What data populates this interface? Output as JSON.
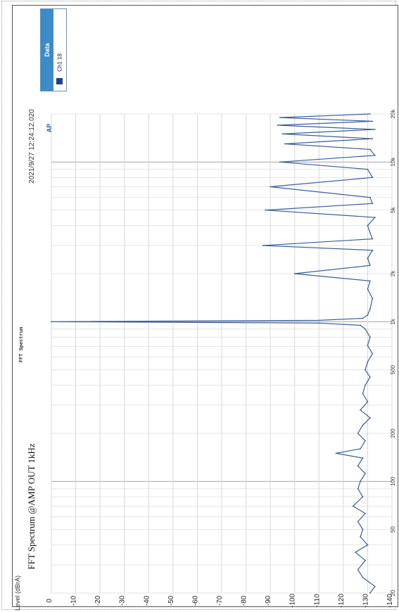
{
  "chart_data": {
    "type": "line",
    "title": "FFT Spectrum @AMP OUT 1kHz",
    "subtitle": "FFT Spectrum",
    "timestamp": "2021/9/27 12:24:12.020",
    "logo": "AP",
    "xlabel": "",
    "ylabel": "Level (dBrA)",
    "x_scale": "log",
    "xlim": [
      20,
      20000
    ],
    "ylim": [
      -140,
      0
    ],
    "y_ticks": [
      0,
      -10,
      -20,
      -30,
      -40,
      -50,
      -60,
      -70,
      -80,
      -90,
      -100,
      -110,
      -120,
      -130,
      -140
    ],
    "y_tick_labels": [
      "0",
      "-10",
      "-20",
      "-30",
      "-40",
      "-50",
      "-60",
      "-70",
      "-80",
      "-90",
      "-100",
      "-110",
      "-120",
      "-130",
      "-140"
    ],
    "x_ticks": [
      20,
      50,
      100,
      200,
      500,
      1000,
      2000,
      5000,
      10000,
      20000
    ],
    "x_tick_labels": [
      "20",
      "50",
      "100",
      "200",
      "500",
      "1k",
      "2k",
      "5k",
      "10k",
      "20k"
    ],
    "grid": true,
    "legend_position": "top-right",
    "orientation": "rotated-90",
    "series": [
      {
        "name": "Ch1 18",
        "color": "#3a5c9a",
        "x": [
          20,
          22,
          25,
          28,
          32,
          36,
          40,
          45,
          50,
          56,
          63,
          70,
          80,
          90,
          100,
          112,
          125,
          140,
          150,
          160,
          180,
          200,
          225,
          250,
          280,
          315,
          355,
          400,
          450,
          500,
          560,
          630,
          710,
          800,
          900,
          950,
          980,
          1000,
          1020,
          1050,
          1100,
          1200,
          1400,
          1600,
          1800,
          2000,
          2250,
          2500,
          2800,
          3000,
          3300,
          3600,
          4000,
          4500,
          5000,
          5500,
          6000,
          7000,
          8000,
          9000,
          10000,
          11000,
          12000,
          13000,
          14000,
          15000,
          16000,
          17000,
          18000,
          19000,
          20000
        ],
        "y": [
          -131,
          -133,
          -128,
          -126,
          -129,
          -125,
          -130,
          -127,
          -128,
          -126,
          -129,
          -124,
          -128,
          -126,
          -127,
          -129,
          -126,
          -128,
          -117,
          -127,
          -129,
          -126,
          -128,
          -131,
          -127,
          -130,
          -128,
          -129,
          -131,
          -129,
          -130,
          -132,
          -130,
          -131,
          -129,
          -127,
          -110,
          0,
          -110,
          -128,
          -130,
          -131,
          -132,
          -130,
          -131,
          -100,
          -131,
          -130,
          -132,
          -87,
          -132,
          -131,
          -130,
          -133,
          -88,
          -132,
          -131,
          -90,
          -132,
          -130,
          -94,
          -133,
          -131,
          -96,
          -132,
          -95,
          -133,
          -93,
          -132,
          -94,
          -131
        ]
      }
    ]
  },
  "legend": {
    "title": "Data",
    "entry": "Ch1 18"
  }
}
